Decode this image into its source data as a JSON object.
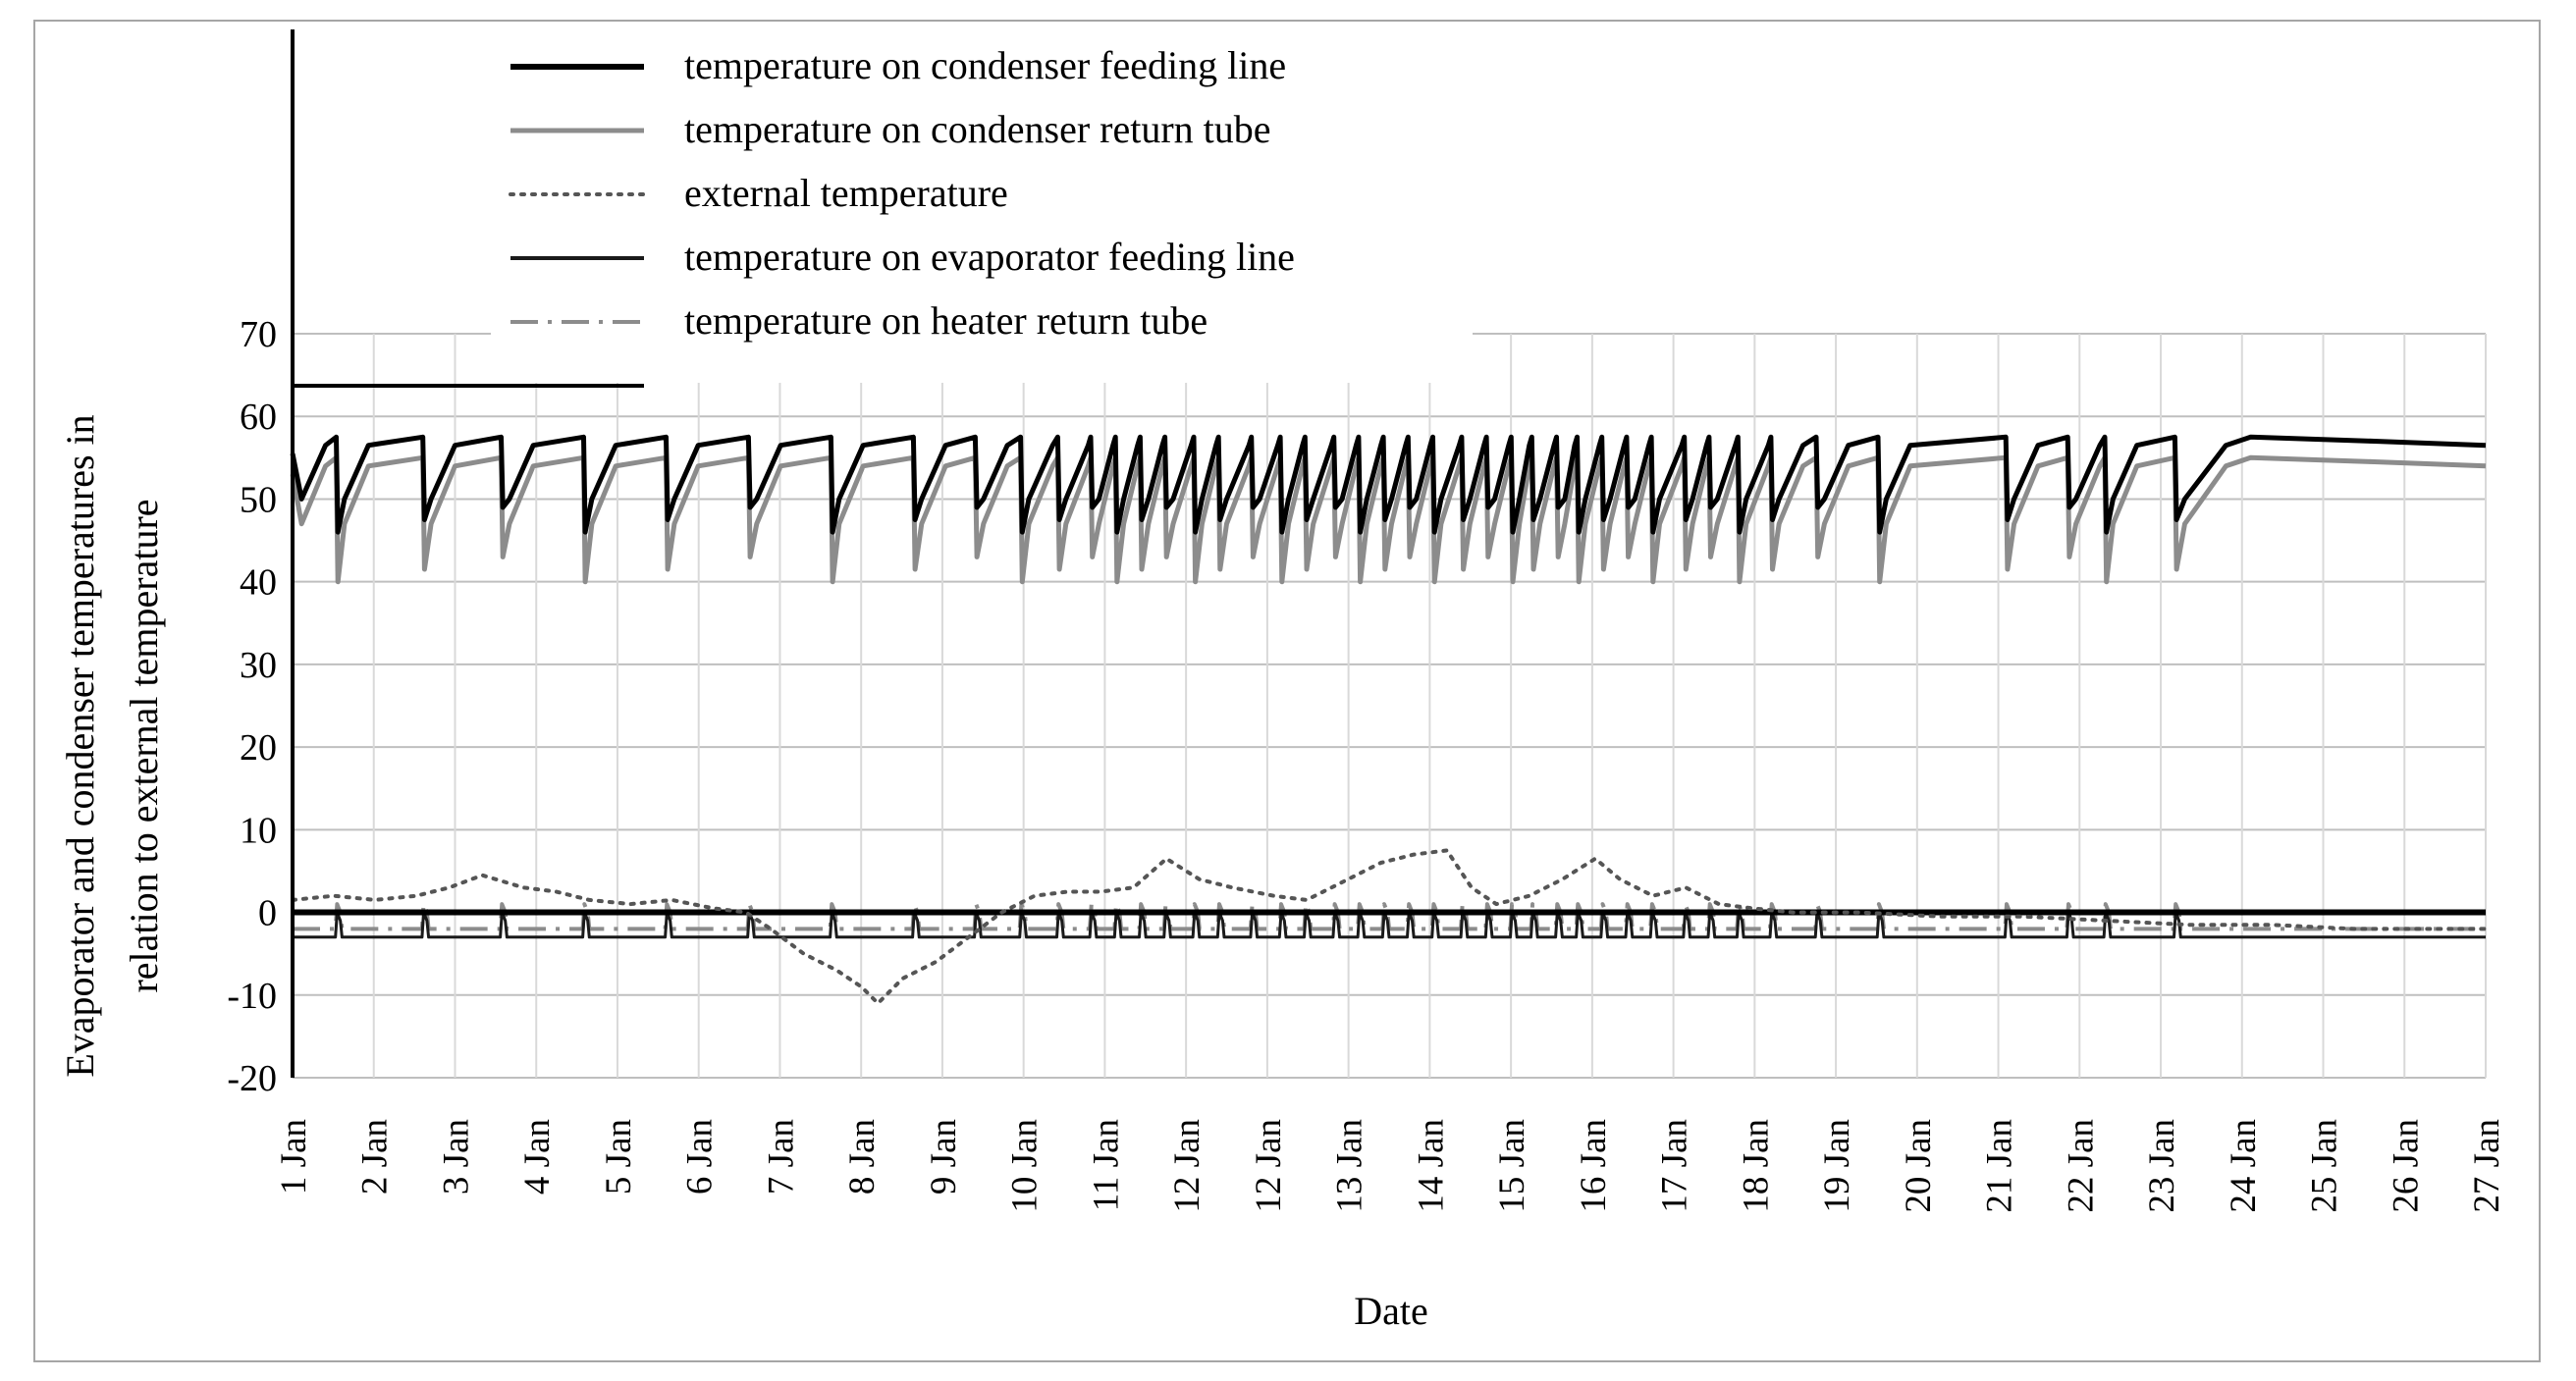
{
  "chart_data": {
    "type": "line",
    "title": "",
    "xlabel": "Date",
    "ylabel_line1": "Evaporator and condenser temperatures in",
    "ylabel_line2": "relation to external temperature",
    "ylim": [
      -20,
      70
    ],
    "yticks": [
      -20,
      -10,
      0,
      10,
      20,
      30,
      40,
      50,
      60,
      70
    ],
    "xlim": [
      0,
      26.6
    ],
    "grid": true,
    "categories": [
      "1 Jan",
      "2 Jan",
      "3 Jan",
      "4 Jan",
      "5 Jan",
      "6 Jan",
      "7 Jan",
      "8 Jan",
      "9 Jan",
      "10 Jan",
      "11 Jan",
      "12 Jan",
      "12 Jan",
      "13 Jan",
      "14 Jan",
      "15 Jan",
      "16 Jan",
      "17 Jan",
      "18 Jan",
      "19 Jan",
      "20 Jan",
      "21 Jan",
      "22 Jan",
      "23 Jan",
      "24 Jan",
      "25 Jan",
      "26 Jan",
      "27 Jan"
    ],
    "legend_position": "top",
    "defrost_cycles_days": [
      0.55,
      1.6,
      2.55,
      3.55,
      4.55,
      5.55,
      6.55,
      7.55,
      8.3,
      8.85,
      9.3,
      9.7,
      10.0,
      10.3,
      10.6,
      10.95,
      11.25,
      11.65,
      12.0,
      12.3,
      12.65,
      12.95,
      13.25,
      13.55,
      13.85,
      14.2,
      14.5,
      14.8,
      15.05,
      15.35,
      15.6,
      15.9,
      16.2,
      16.5,
      16.9,
      17.2,
      17.55,
      17.95,
      18.5,
      19.25,
      20.8,
      21.55,
      22.0,
      22.85
    ],
    "series": [
      {
        "name": "temperature on condenser feeding line",
        "style": "solid-thick",
        "color": "#000000",
        "plateau": 57.5,
        "dip_min": 46,
        "after": 56.5
      },
      {
        "name": "temperature on condenser return tube",
        "style": "solid",
        "color": "#8c8c8c",
        "plateau": 55,
        "dip_min": 40,
        "after": 54
      },
      {
        "name": "external temperature",
        "style": "dotted",
        "color": "#555555",
        "x": [
          0,
          0.5,
          1,
          1.5,
          1.9,
          2.3,
          2.8,
          3.2,
          3.6,
          4.1,
          4.6,
          5.1,
          5.5,
          5.8,
          6.2,
          6.6,
          6.9,
          7.1,
          7.4,
          7.8,
          8.2,
          8.6,
          9.0,
          9.4,
          9.8,
          10.2,
          10.6,
          11.0,
          11.4,
          11.9,
          12.3,
          12.8,
          13.2,
          13.6,
          14.0,
          14.3,
          14.6,
          15.0,
          15.4,
          15.8,
          16.1,
          16.5,
          16.9,
          17.3,
          17.7,
          18.2,
          19.0,
          20.0,
          21.0,
          22.0,
          23.0,
          24.0,
          25.0,
          26.0,
          26.6
        ],
        "values": [
          1.5,
          2,
          1.5,
          2,
          3,
          4.5,
          3,
          2.5,
          1.5,
          1,
          1.5,
          0.5,
          0,
          -2,
          -5,
          -7,
          -9,
          -11,
          -8,
          -6,
          -3,
          0,
          2,
          2.5,
          2.5,
          3,
          6.5,
          4,
          3,
          2,
          1.5,
          4,
          6,
          7,
          7.5,
          3,
          1,
          2,
          4,
          6.5,
          4,
          2,
          3,
          1,
          0.5,
          0,
          0,
          -0.5,
          -0.5,
          -1,
          -1.5,
          -1.5,
          -2,
          -2,
          -2
        ]
      },
      {
        "name": "temperature on evaporator feeding line",
        "style": "solid",
        "color": "#1a1a1a",
        "baseline": -3,
        "upper": 0
      },
      {
        "name": "temperature on heater return tube",
        "style": "dash-dot",
        "color": "#8c8c8c",
        "baseline": -2,
        "upper": 1
      }
    ]
  }
}
